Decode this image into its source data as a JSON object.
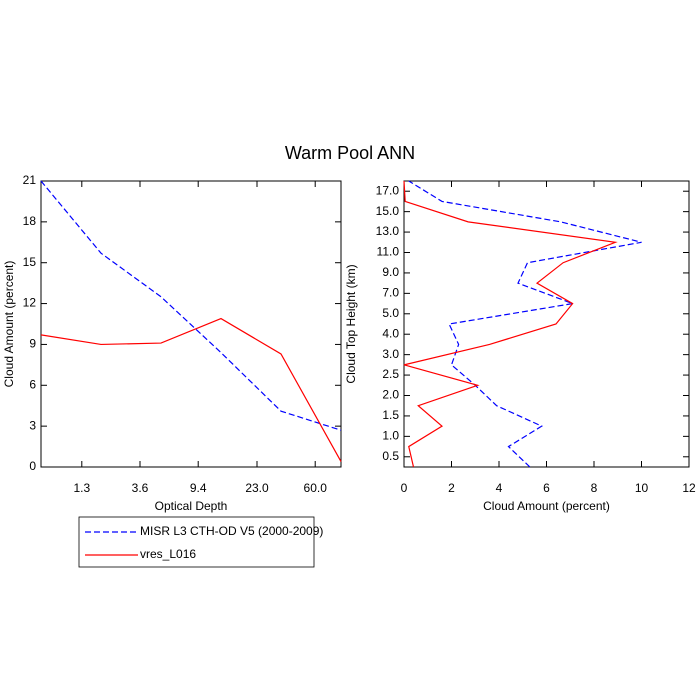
{
  "title": "Warm Pool ANN",
  "chart_data": [
    {
      "type": "line",
      "orientation": "vertical",
      "xlabel": "Optical Depth",
      "ylabel": "Cloud Amount (percent)",
      "x": [
        0,
        1,
        2,
        3,
        4,
        5
      ],
      "xlim": [
        0,
        5
      ],
      "xticks": [
        {
          "value": 0.68,
          "label": "1.3"
        },
        {
          "value": 1.65,
          "label": "3.6"
        },
        {
          "value": 2.62,
          "label": "9.4"
        },
        {
          "value": 3.6,
          "label": "23.0"
        },
        {
          "value": 4.57,
          "label": "60.0"
        }
      ],
      "ylim": [
        0,
        21
      ],
      "yticks": [
        0,
        3,
        6,
        9,
        12,
        15,
        18,
        21
      ],
      "series": [
        {
          "name": "MISR L3 CTH-OD V5 (2000-2009)",
          "color": "#0000ff",
          "dash": true,
          "values": [
            21,
            15.7,
            12.5,
            8.4,
            4.1,
            2.7
          ]
        },
        {
          "name": "vres_L016",
          "color": "#ff0000",
          "dash": false,
          "values": [
            9.7,
            9.0,
            9.1,
            10.9,
            8.3,
            0.4
          ]
        }
      ]
    },
    {
      "type": "line",
      "orientation": "horizontal",
      "xlabel": "Cloud Amount (percent)",
      "ylabel": "Cloud Top Height (km)",
      "xlim": [
        0,
        12
      ],
      "xticks": [
        0,
        2,
        4,
        6,
        8,
        10,
        12
      ],
      "y": [
        -0.5,
        0.5,
        1.5,
        2.5,
        3.5,
        4.5,
        5.5,
        6.5,
        7.5,
        8.5,
        9.5,
        10.5,
        11.5,
        12.5,
        13.5
      ],
      "ylim": [
        -0.5,
        13.5
      ],
      "yticks": [
        {
          "value": 0,
          "label": "0.5"
        },
        {
          "value": 1,
          "label": "1.0"
        },
        {
          "value": 2,
          "label": "1.5"
        },
        {
          "value": 3,
          "label": "2.0"
        },
        {
          "value": 4,
          "label": "2.5"
        },
        {
          "value": 5,
          "label": "3.0"
        },
        {
          "value": 6,
          "label": "4.0"
        },
        {
          "value": 7,
          "label": "5.0"
        },
        {
          "value": 8,
          "label": "7.0"
        },
        {
          "value": 9,
          "label": "9.0"
        },
        {
          "value": 10,
          "label": "11.0"
        },
        {
          "value": 11,
          "label": "13.0"
        },
        {
          "value": 12,
          "label": "15.0"
        },
        {
          "value": 13,
          "label": "17.0"
        }
      ],
      "series": [
        {
          "color": "#0000ff",
          "dash": true,
          "values": [
            5.3,
            4.4,
            5.8,
            3.9,
            3.0,
            2.0,
            2.3,
            1.9,
            7.1,
            4.8,
            5.2,
            10.0,
            6.6,
            1.6,
            0.2
          ]
        },
        {
          "color": "#ff0000",
          "dash": false,
          "values": [
            0.4,
            0.2,
            1.6,
            0.6,
            3.1,
            0.0,
            3.6,
            6.4,
            7.1,
            5.6,
            6.7,
            8.9,
            2.7,
            0.05,
            0
          ]
        }
      ]
    }
  ]
}
